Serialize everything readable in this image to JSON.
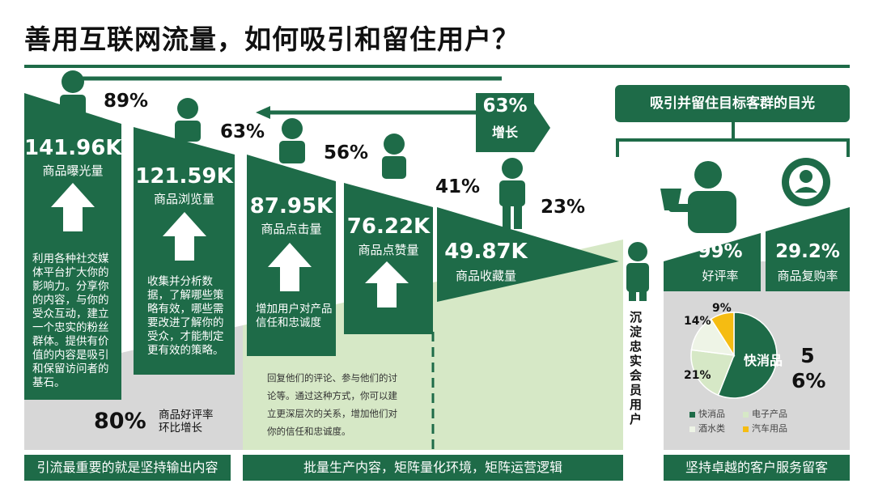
{
  "title": "善用互联网流量，如何吸引和留住用户？",
  "colors": {
    "green": "#1e6b48",
    "light_green": "#d6e8c6",
    "gray": "#d7d7d7",
    "yellow": "#f5bc12",
    "arrow": "#ffffff"
  },
  "funnel": [
    {
      "value": "141.96K",
      "label": "商品曝光量",
      "desc": "利用各种社交媒体平台扩大你的影响力。分享你的内容，与你的受众互动，建立一个忠实的粉丝群体。提供有价值的内容是吸引和保留访问者的基石。"
    },
    {
      "value": "121.59K",
      "label": "商品浏览量",
      "desc": "收集并分析数据，了解哪些策略有效，哪些需要改进了解你的受众，才能制定更有效的策略。"
    },
    {
      "value": "87.95K",
      "label": "商品点击量",
      "desc": "增加用户对产品信任和忠诚度"
    },
    {
      "value": "76.22K",
      "label": "商品点赞量"
    },
    {
      "value": "49.87K",
      "label": "商品收藏量"
    }
  ],
  "rates": [
    "89%",
    "63%",
    "56%",
    "41%",
    "23%"
  ],
  "growth": {
    "value": "63%",
    "label": "增长"
  },
  "review": {
    "value": "80%",
    "label": "商品好评率\n环比增长"
  },
  "middle_text": "回复他们的评论、参与他们的讨论等。通过这种方式，你可以建立更深层次的关系，增加他们对你的信任和忠诚度。",
  "loyal_user_label": "沉淀忠实会员用户",
  "goal_title": "吸引并留住目标客群的目光",
  "goals": [
    {
      "value": "99%",
      "label": "好评率"
    },
    {
      "value": "29.2%",
      "label": "商品复购率"
    }
  ],
  "chart_data": {
    "type": "pie",
    "categories": [
      "快消品",
      "电子产品",
      "酒水类",
      "汽车用品"
    ],
    "values": [
      56,
      21,
      14,
      9
    ],
    "colors": [
      "#1e6b48",
      "#d6e8c6",
      "#eef4e6",
      "#f5bc12"
    ],
    "data_labels": [
      "快消品",
      "21%",
      "14%",
      "9%"
    ],
    "highlight_value": "56%",
    "legend": "bottom"
  },
  "banners": [
    "引流最重要的就是坚持输出内容",
    "批量生产内容，矩阵量化环境，矩阵运营逻辑",
    "坚持卓越的客户服务留客"
  ]
}
